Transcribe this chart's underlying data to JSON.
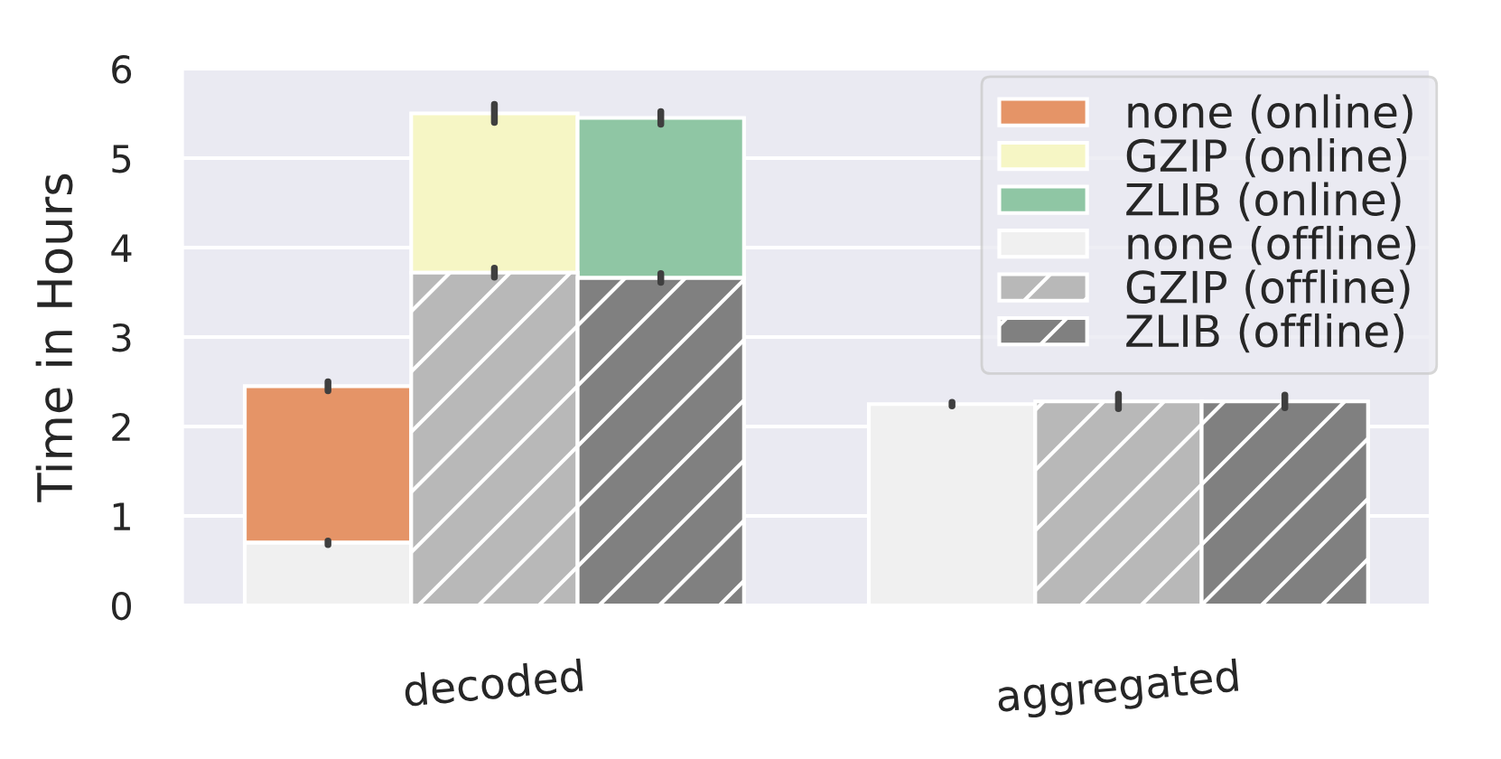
{
  "chart_data": {
    "type": "bar",
    "ylabel": "Time in Hours",
    "categories": [
      "decoded",
      "aggregated"
    ],
    "series": [
      {
        "name": "none (online)",
        "color": "#e59467",
        "values": [
          1.75,
          null
        ],
        "base": [
          0.7,
          null
        ],
        "errors": [
          0.05,
          null
        ]
      },
      {
        "name": "GZIP (online)",
        "color": "#f6f6c5",
        "values": [
          1.78,
          null
        ],
        "base": [
          3.72,
          null
        ],
        "errors": [
          0.1,
          null
        ]
      },
      {
        "name": "ZLIB (online)",
        "color": "#8fc6a4",
        "values": [
          1.79,
          null
        ],
        "base": [
          3.66,
          null
        ],
        "errors": [
          0.07,
          null
        ]
      },
      {
        "name": "none (offline)",
        "color": "#f0f0f0",
        "values": [
          0.7,
          2.25
        ],
        "errors": [
          0.02,
          0.02
        ]
      },
      {
        "name": "GZIP (offline)",
        "color": "#b8b8b8",
        "values": [
          3.72,
          2.28
        ],
        "errors": [
          0.05,
          0.08
        ]
      },
      {
        "name": "ZLIB (offline)",
        "color": "#808080",
        "values": [
          3.66,
          2.28
        ],
        "errors": [
          0.05,
          0.07
        ]
      }
    ],
    "ylim": [
      0,
      6
    ],
    "yticks": [
      0,
      1,
      2,
      3,
      4,
      5,
      6
    ],
    "grid": "y",
    "legend": "top right"
  }
}
